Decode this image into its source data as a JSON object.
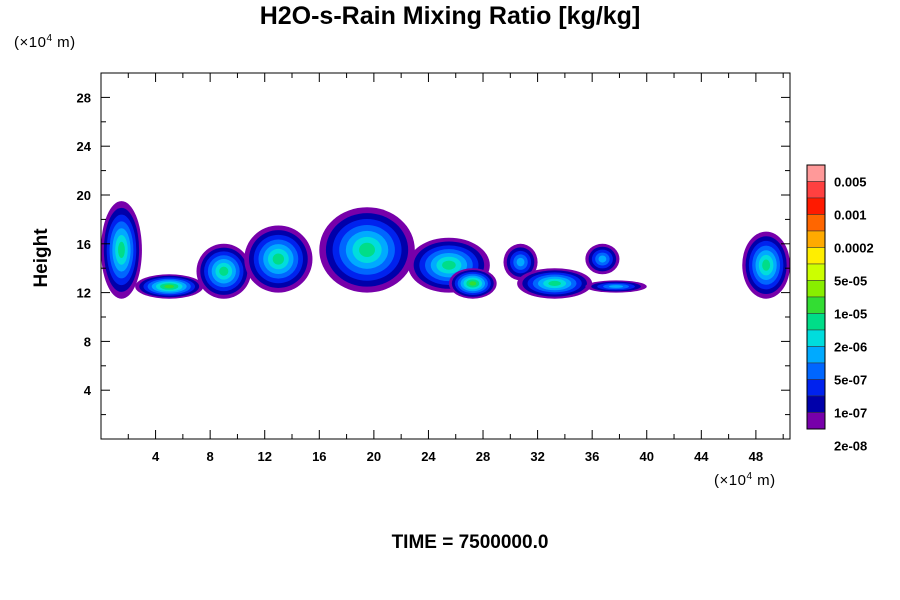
{
  "chart_data": {
    "type": "heatmap",
    "title": "H2O-s-Rain Mixing Ratio [kg/kg]",
    "xlabel": "",
    "ylabel": "Height",
    "x_unit": {
      "prefix": "(×10",
      "exp": "4",
      "suffix": " m)"
    },
    "y_unit": {
      "prefix": "(×10",
      "exp": "4",
      "suffix": " m)"
    },
    "xlim": [
      0,
      50.5
    ],
    "ylim": [
      0,
      30
    ],
    "x_ticks": [
      "4",
      "8",
      "12",
      "16",
      "20",
      "24",
      "28",
      "32",
      "36",
      "40",
      "44",
      "48"
    ],
    "x_tick_values": [
      4,
      8,
      12,
      16,
      20,
      24,
      28,
      32,
      36,
      40,
      44,
      48
    ],
    "y_ticks": [
      "4",
      "8",
      "12",
      "16",
      "20",
      "24",
      "28"
    ],
    "y_tick_values": [
      4,
      8,
      12,
      16,
      20,
      24,
      28
    ],
    "legend": {
      "labels": [
        "0.005",
        "0.001",
        "0.0002",
        "5e-05",
        "1e-05",
        "2e-06",
        "5e-07",
        "1e-07",
        "2e-08"
      ],
      "colors": [
        "#ff9999",
        "#ff4040",
        "#ff1a00",
        "#ff6600",
        "#ffaa00",
        "#ffee00",
        "#ccff00",
        "#88ee00",
        "#33dd33",
        "#00dd88",
        "#00dddd",
        "#00aaff",
        "#0066ff",
        "#0022ee",
        "#0000aa",
        "#7700aa"
      ]
    },
    "clouds": [
      {
        "x": [
          0,
          3
        ],
        "y": [
          11.5,
          19.5
        ],
        "level": 6
      },
      {
        "x": [
          2.5,
          7.5
        ],
        "y": [
          11.5,
          13.5
        ],
        "level": 7
      },
      {
        "x": [
          7,
          11
        ],
        "y": [
          11.5,
          16
        ],
        "level": 6
      },
      {
        "x": [
          10.5,
          15.5
        ],
        "y": [
          12,
          17.5
        ],
        "level": 6
      },
      {
        "x": [
          16,
          23
        ],
        "y": [
          12,
          19
        ],
        "level": 6
      },
      {
        "x": [
          22.5,
          28.5
        ],
        "y": [
          12,
          16.5
        ],
        "level": 6
      },
      {
        "x": [
          25.5,
          29
        ],
        "y": [
          11.5,
          14
        ],
        "level": 7
      },
      {
        "x": [
          29.5,
          32
        ],
        "y": [
          13,
          16
        ],
        "level": 4
      },
      {
        "x": [
          30.5,
          36
        ],
        "y": [
          11.5,
          14
        ],
        "level": 6
      },
      {
        "x": [
          35.5,
          40
        ],
        "y": [
          12,
          13
        ],
        "level": 4
      },
      {
        "x": [
          35.5,
          38
        ],
        "y": [
          13.5,
          16
        ],
        "level": 4
      },
      {
        "x": [
          47,
          50.5
        ],
        "y": [
          11.5,
          17
        ],
        "level": 6
      }
    ],
    "time_label": "TIME = 7500000.0"
  }
}
